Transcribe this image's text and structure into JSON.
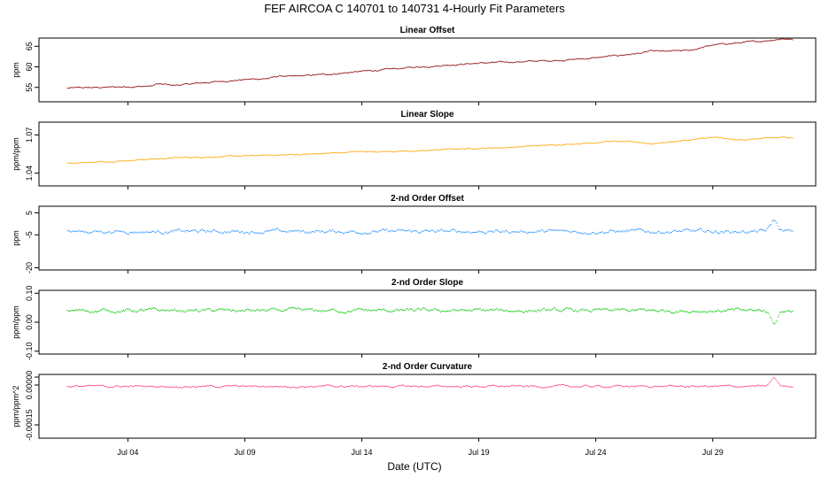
{
  "title": "FEF   AIRCOA C   140701 to 140731   4-Hourly Fit Parameters",
  "chart_data": {
    "type": "line",
    "title": "FEF   AIRCOA C   140701 to 140731   4-Hourly Fit Parameters",
    "xlabel": "Date (UTC)",
    "x_tick_labels": [
      "Jul 04",
      "Jul 09",
      "Jul 14",
      "Jul 19",
      "Jul 24",
      "Jul 29"
    ],
    "x_tick_days": [
      4,
      9,
      14,
      19,
      24,
      29
    ],
    "xlim": [
      0.2,
      33.4
    ],
    "x_start_day": 1.4,
    "x_end_day": 32.4,
    "panels": [
      {
        "id": "linear-offset",
        "title": "Linear Offset",
        "ylabel": "ppm",
        "color": "#8b0000",
        "ylim": [
          51.5,
          67
        ],
        "yticks": [
          55,
          60,
          65
        ],
        "ytick_labels": [
          "55",
          "60",
          "65"
        ],
        "knots_x": [
          1.4,
          2,
          3,
          4,
          5,
          5.2,
          6,
          7,
          8,
          9,
          10,
          10.5,
          11,
          12,
          13,
          14,
          15,
          16,
          17,
          18,
          19,
          20,
          21,
          22,
          23,
          24,
          25,
          26,
          26.3,
          27,
          28,
          28.6,
          29,
          30,
          31,
          32,
          32.4
        ],
        "knots_y": [
          54.8,
          54.9,
          55.0,
          55.2,
          55.3,
          55.8,
          55.5,
          56.0,
          56.5,
          56.9,
          57.2,
          57.8,
          57.6,
          58.0,
          58.4,
          58.9,
          59.3,
          59.8,
          60.2,
          60.6,
          60.9,
          61.1,
          61.3,
          61.5,
          61.8,
          62.2,
          62.8,
          63.4,
          63.8,
          63.7,
          64.0,
          64.8,
          65.3,
          65.8,
          66.2,
          66.9,
          66.6
        ],
        "noise": 0.25
      },
      {
        "id": "linear-slope",
        "title": "Linear Slope",
        "ylabel": "ppm/ppm",
        "color": "#ffa500",
        "ylim": [
          1.03,
          1.08
        ],
        "yticks": [
          1.04,
          1.07
        ],
        "ytick_labels": [
          "1.04",
          "1.07"
        ],
        "knots_x": [
          1.4,
          3,
          5,
          6,
          8,
          10,
          12,
          14,
          16,
          18,
          20,
          22,
          24,
          24.5,
          26,
          26.3,
          28,
          29,
          30,
          32,
          32.4
        ],
        "knots_y": [
          1.048,
          1.049,
          1.051,
          1.052,
          1.053,
          1.054,
          1.055,
          1.057,
          1.057,
          1.059,
          1.06,
          1.062,
          1.064,
          1.065,
          1.064,
          1.063,
          1.066,
          1.068,
          1.066,
          1.068,
          1.068
        ],
        "noise": 0.0006
      },
      {
        "id": "second-order-offset",
        "title": "2-nd Order Offset",
        "ylabel": "ppm",
        "color": "#1e90ff",
        "ylim": [
          -21,
          8
        ],
        "yticks": [
          -20,
          -5,
          5
        ],
        "ytick_labels": [
          "-20",
          "-5",
          "5"
        ],
        "knots_x": [
          1.4,
          32.4
        ],
        "knots_y": [
          -3.5,
          -3.5
        ],
        "spike_day": 31.6,
        "spike_value": 1.5,
        "noise": 1.2
      },
      {
        "id": "second-order-slope",
        "title": "2-nd Order Slope",
        "ylabel": "ppm/ppm",
        "color": "#00c800",
        "ylim": [
          -0.11,
          0.11
        ],
        "yticks": [
          -0.1,
          0.0,
          0.1
        ],
        "ytick_labels": [
          "-0.10",
          "0.00",
          "0.10"
        ],
        "knots_x": [
          1.4,
          32.4
        ],
        "knots_y": [
          0.04,
          0.04
        ],
        "spike_day": 31.6,
        "spike_value": 0.0,
        "noise": 0.009
      },
      {
        "id": "second-order-curvature",
        "title": "2-nd Order Curvature",
        "ylabel": "ppm/ppm^2",
        "color": "#ff3c78",
        "ylim": [
          -0.0002,
          4e-05
        ],
        "yticks": [
          -0.00015,
          0.0,
          3e-05
        ],
        "ytick_labels": [
          "-0.00015",
          "0.00000",
          ""
        ],
        "knots_x": [
          1.4,
          32.4
        ],
        "knots_y": [
          -5e-06,
          -5e-06
        ],
        "spike_day": 31.6,
        "spike_value": 2.5e-05,
        "noise": 5.5e-06
      }
    ]
  }
}
